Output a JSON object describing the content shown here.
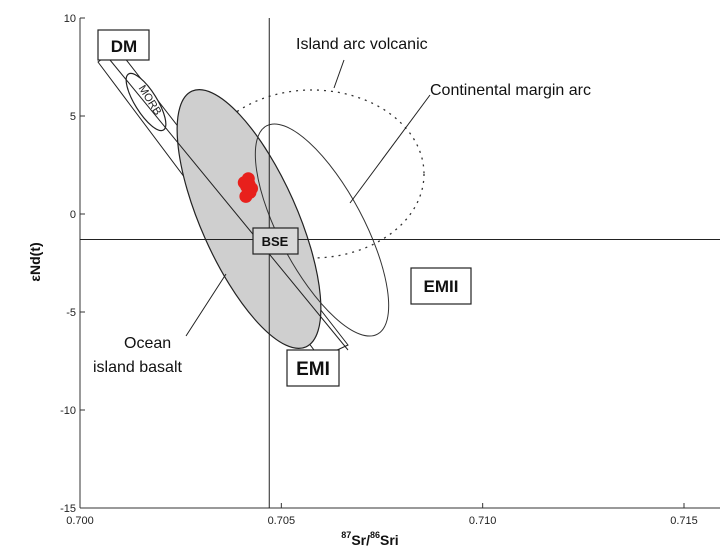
{
  "chart_data": {
    "type": "scatter",
    "title": "",
    "xlabel": "87Sr/86Sri",
    "xlabel_parts": {
      "sup1": "87",
      "main1": "Sr/",
      "sup2": "86",
      "main2": "Sri"
    },
    "ylabel": "εNd(t)",
    "xlim": [
      0.7,
      0.716
    ],
    "ylim": [
      -15,
      10
    ],
    "xticks": [
      0.7,
      0.705,
      0.71,
      0.715
    ],
    "xtick_labels": [
      "0.700",
      "0.705",
      "0.710",
      "0.715"
    ],
    "yticks": [
      10,
      5,
      0,
      -5,
      -10,
      -15
    ],
    "ytick_labels": [
      "10",
      "5",
      "0",
      "-5",
      "-10",
      "-15"
    ],
    "reference_lines": {
      "bse_x": 0.7047,
      "bse_y": -1.3
    },
    "fields": [
      {
        "name": "Ocean island basalt",
        "label": "Ocean\nisland basalt",
        "shape": "ellipse",
        "center": [
          0.7037,
          -0.5
        ],
        "style": "filled-gray"
      },
      {
        "name": "Island arc volcanic",
        "label": "Island arc volcanic",
        "shape": "ellipse",
        "center": [
          0.7057,
          2.0
        ],
        "style": "dotted"
      },
      {
        "name": "Continental margin arc",
        "label": "Continental margin arc",
        "shape": "ellipse",
        "center": [
          0.7059,
          -0.8
        ],
        "style": "solid-outline"
      },
      {
        "name": "MORB",
        "label": "MORB",
        "shape": "ellipse",
        "center": [
          0.7018,
          5.7
        ],
        "style": "outline"
      },
      {
        "name": "Mantle array",
        "label": "",
        "shape": "band",
        "style": "outline"
      }
    ],
    "end_members": [
      {
        "label": "DM",
        "x": 0.701,
        "y": 8.5
      },
      {
        "label": "BSE",
        "x": 0.7047,
        "y": -1.3
      },
      {
        "label": "EMI",
        "x": 0.7057,
        "y": -7.9
      },
      {
        "label": "EMII",
        "x": 0.7087,
        "y": -3.7
      }
    ],
    "samples": [
      {
        "x": 0.70414,
        "y": 1.4
      },
      {
        "x": 0.70422,
        "y": 1.1
      },
      {
        "x": 0.70408,
        "y": 1.6
      },
      {
        "x": 0.70418,
        "y": 1.8
      },
      {
        "x": 0.70426,
        "y": 1.3
      },
      {
        "x": 0.70412,
        "y": 0.9
      },
      {
        "x": 0.7042,
        "y": 1.5
      }
    ],
    "sample_color": "#e8201c",
    "oib_fill": "#cfcfcf",
    "grid": false,
    "legend": "none"
  }
}
